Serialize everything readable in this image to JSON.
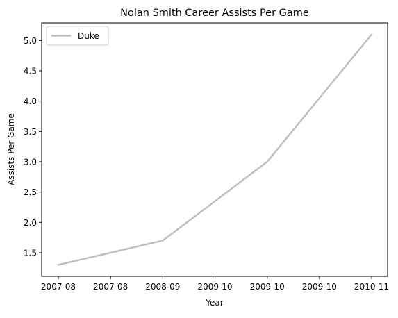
{
  "chart_data": {
    "type": "line",
    "title": "Nolan Smith Career Assists Per Game",
    "xlabel": "Year",
    "ylabel": "Assists Per Game",
    "x": [
      "2007-08",
      "2008-09",
      "2009-10",
      "2010-11"
    ],
    "x_tick_labels": [
      "2007-08",
      "2007-08",
      "2008-09",
      "2009-10",
      "2009-10",
      "2009-10",
      "2010-11"
    ],
    "y_ticks": [
      1.5,
      2.0,
      2.5,
      3.0,
      3.5,
      4.0,
      4.5,
      5.0
    ],
    "y_tick_labels": [
      "1.5",
      "2.0",
      "2.5",
      "3.0",
      "3.5",
      "4.0",
      "4.5",
      "5.0"
    ],
    "ylim": [
      1.11,
      5.29
    ],
    "series": [
      {
        "name": "Duke",
        "values": [
          1.3,
          1.7,
          3.0,
          5.1
        ],
        "color": "#bfbfbf"
      }
    ],
    "legend_position": "top-left",
    "grid": false
  }
}
